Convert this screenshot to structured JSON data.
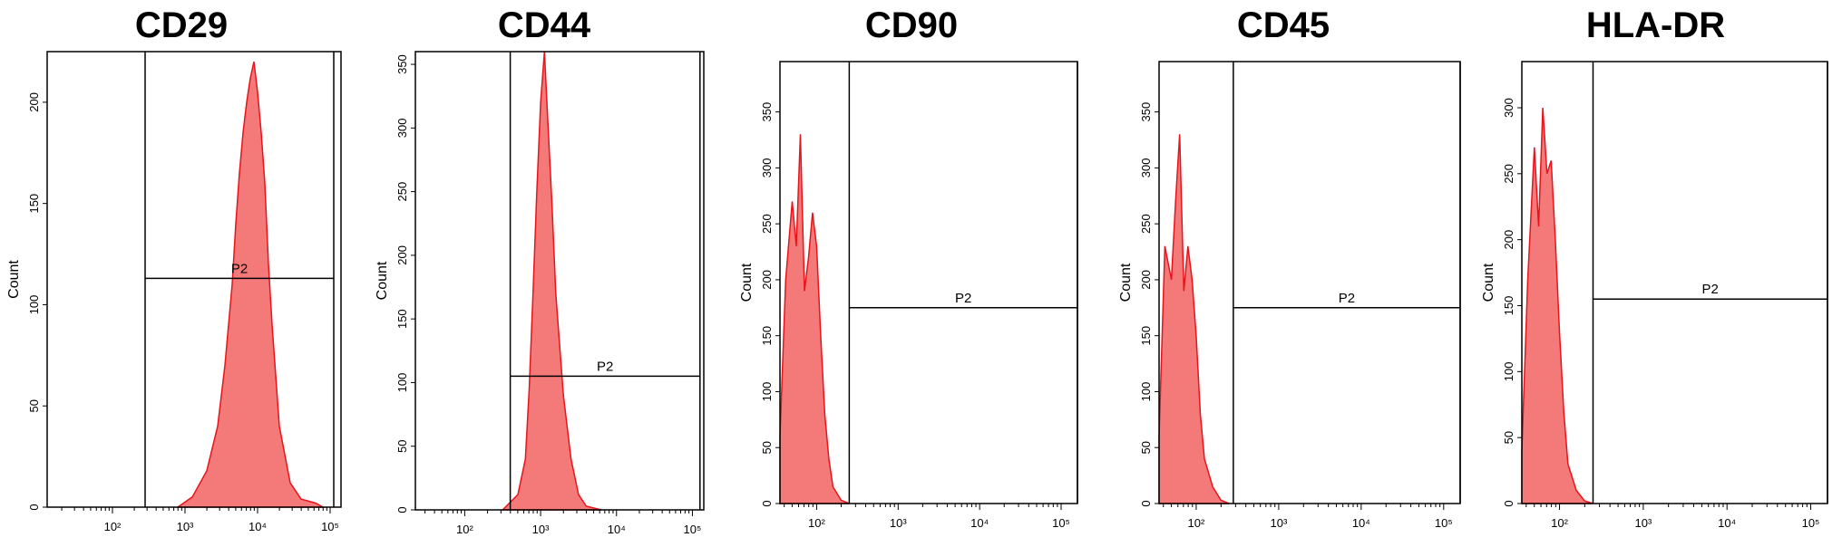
{
  "colors": {
    "fill": "#f47a7a",
    "stroke": "#e8141b",
    "axis": "#000000"
  },
  "chart_data": [
    {
      "type": "area",
      "title": "CD29",
      "ylabel": "Count",
      "x_ticks": [
        "10²",
        "10³",
        "10⁴",
        "10⁵"
      ],
      "y_ticks": [
        "0",
        "50",
        "100",
        "150",
        "200"
      ],
      "xlim_log10": [
        1.1,
        5.15
      ],
      "ylim": [
        0,
        225
      ],
      "gate": {
        "label": "P2",
        "x_min_log10": 2.45,
        "x_max_log10": 5.05,
        "bar_y": 113
      },
      "histogram": {
        "x_log10": [
          2.9,
          3.1,
          3.3,
          3.45,
          3.55,
          3.65,
          3.7,
          3.75,
          3.8,
          3.85,
          3.9,
          3.95,
          4.0,
          4.05,
          4.1,
          4.15,
          4.2,
          4.3,
          4.45,
          4.6,
          4.8,
          4.9
        ],
        "y": [
          0,
          5,
          18,
          40,
          70,
          110,
          140,
          165,
          185,
          200,
          212,
          220,
          205,
          185,
          160,
          120,
          90,
          40,
          12,
          4,
          2,
          0
        ]
      }
    },
    {
      "type": "area",
      "title": "CD44",
      "ylabel": "Count",
      "x_ticks": [
        "10²",
        "10³",
        "10⁴",
        "10⁵"
      ],
      "y_ticks": [
        "0",
        "50",
        "100",
        "150",
        "200",
        "250",
        "300",
        "350"
      ],
      "xlim_log10": [
        1.35,
        5.15
      ],
      "ylim": [
        0,
        360
      ],
      "gate": {
        "label": "P2",
        "x_min_log10": 2.6,
        "x_max_log10": 5.1,
        "bar_y": 105
      },
      "histogram": {
        "x_log10": [
          2.5,
          2.7,
          2.8,
          2.85,
          2.9,
          2.95,
          3.0,
          3.05,
          3.1,
          3.15,
          3.2,
          3.3,
          3.4,
          3.5,
          3.6,
          3.8
        ],
        "y": [
          0,
          12,
          40,
          95,
          170,
          250,
          320,
          360,
          300,
          240,
          170,
          90,
          40,
          12,
          3,
          0
        ]
      }
    },
    {
      "type": "area",
      "title": "CD90",
      "ylabel": "Count",
      "x_ticks": [
        "10²",
        "10³",
        "10⁴",
        "10⁵"
      ],
      "y_ticks": [
        "0",
        "50",
        "100",
        "150",
        "200",
        "250",
        "300",
        "350"
      ],
      "xlim_log10": [
        1.55,
        5.2
      ],
      "ylim": [
        0,
        395
      ],
      "gate": {
        "label": "P2",
        "x_min_log10": 2.4,
        "x_max_log10": 5.2,
        "bar_y": 175
      },
      "histogram": {
        "x_log10": [
          1.55,
          1.62,
          1.7,
          1.75,
          1.8,
          1.85,
          1.9,
          1.95,
          2.0,
          2.05,
          2.1,
          2.15,
          2.2,
          2.3,
          2.4
        ],
        "y": [
          60,
          200,
          270,
          230,
          330,
          190,
          220,
          260,
          230,
          150,
          80,
          40,
          15,
          3,
          0
        ]
      }
    },
    {
      "type": "area",
      "title": "CD45",
      "ylabel": "Count",
      "x_ticks": [
        "10²",
        "10³",
        "10⁴",
        "10⁵"
      ],
      "y_ticks": [
        "0",
        "50",
        "100",
        "150",
        "200",
        "250",
        "300",
        "350"
      ],
      "xlim_log10": [
        1.55,
        5.2
      ],
      "ylim": [
        0,
        395
      ],
      "gate": {
        "label": "P2",
        "x_min_log10": 2.45,
        "x_max_log10": 5.2,
        "bar_y": 175
      },
      "histogram": {
        "x_log10": [
          1.55,
          1.62,
          1.7,
          1.75,
          1.8,
          1.85,
          1.9,
          1.95,
          2.0,
          2.05,
          2.1,
          2.2,
          2.3,
          2.4
        ],
        "y": [
          60,
          230,
          200,
          270,
          330,
          190,
          230,
          200,
          150,
          80,
          40,
          15,
          3,
          0
        ]
      }
    },
    {
      "type": "area",
      "title": "HLA-DR",
      "ylabel": "Count",
      "x_ticks": [
        "10²",
        "10³",
        "10⁴",
        "10⁵"
      ],
      "y_ticks": [
        "0",
        "50",
        "100",
        "150",
        "200",
        "250",
        "300"
      ],
      "xlim_log10": [
        1.55,
        5.2
      ],
      "ylim": [
        0,
        335
      ],
      "gate": {
        "label": "P2",
        "x_min_log10": 2.4,
        "x_max_log10": 5.2,
        "bar_y": 155
      },
      "histogram": {
        "x_log10": [
          1.55,
          1.62,
          1.7,
          1.75,
          1.8,
          1.85,
          1.9,
          1.95,
          2.0,
          2.05,
          2.1,
          2.2,
          2.3,
          2.4
        ],
        "y": [
          40,
          170,
          270,
          210,
          300,
          250,
          260,
          200,
          130,
          70,
          30,
          10,
          2,
          0
        ]
      }
    }
  ]
}
